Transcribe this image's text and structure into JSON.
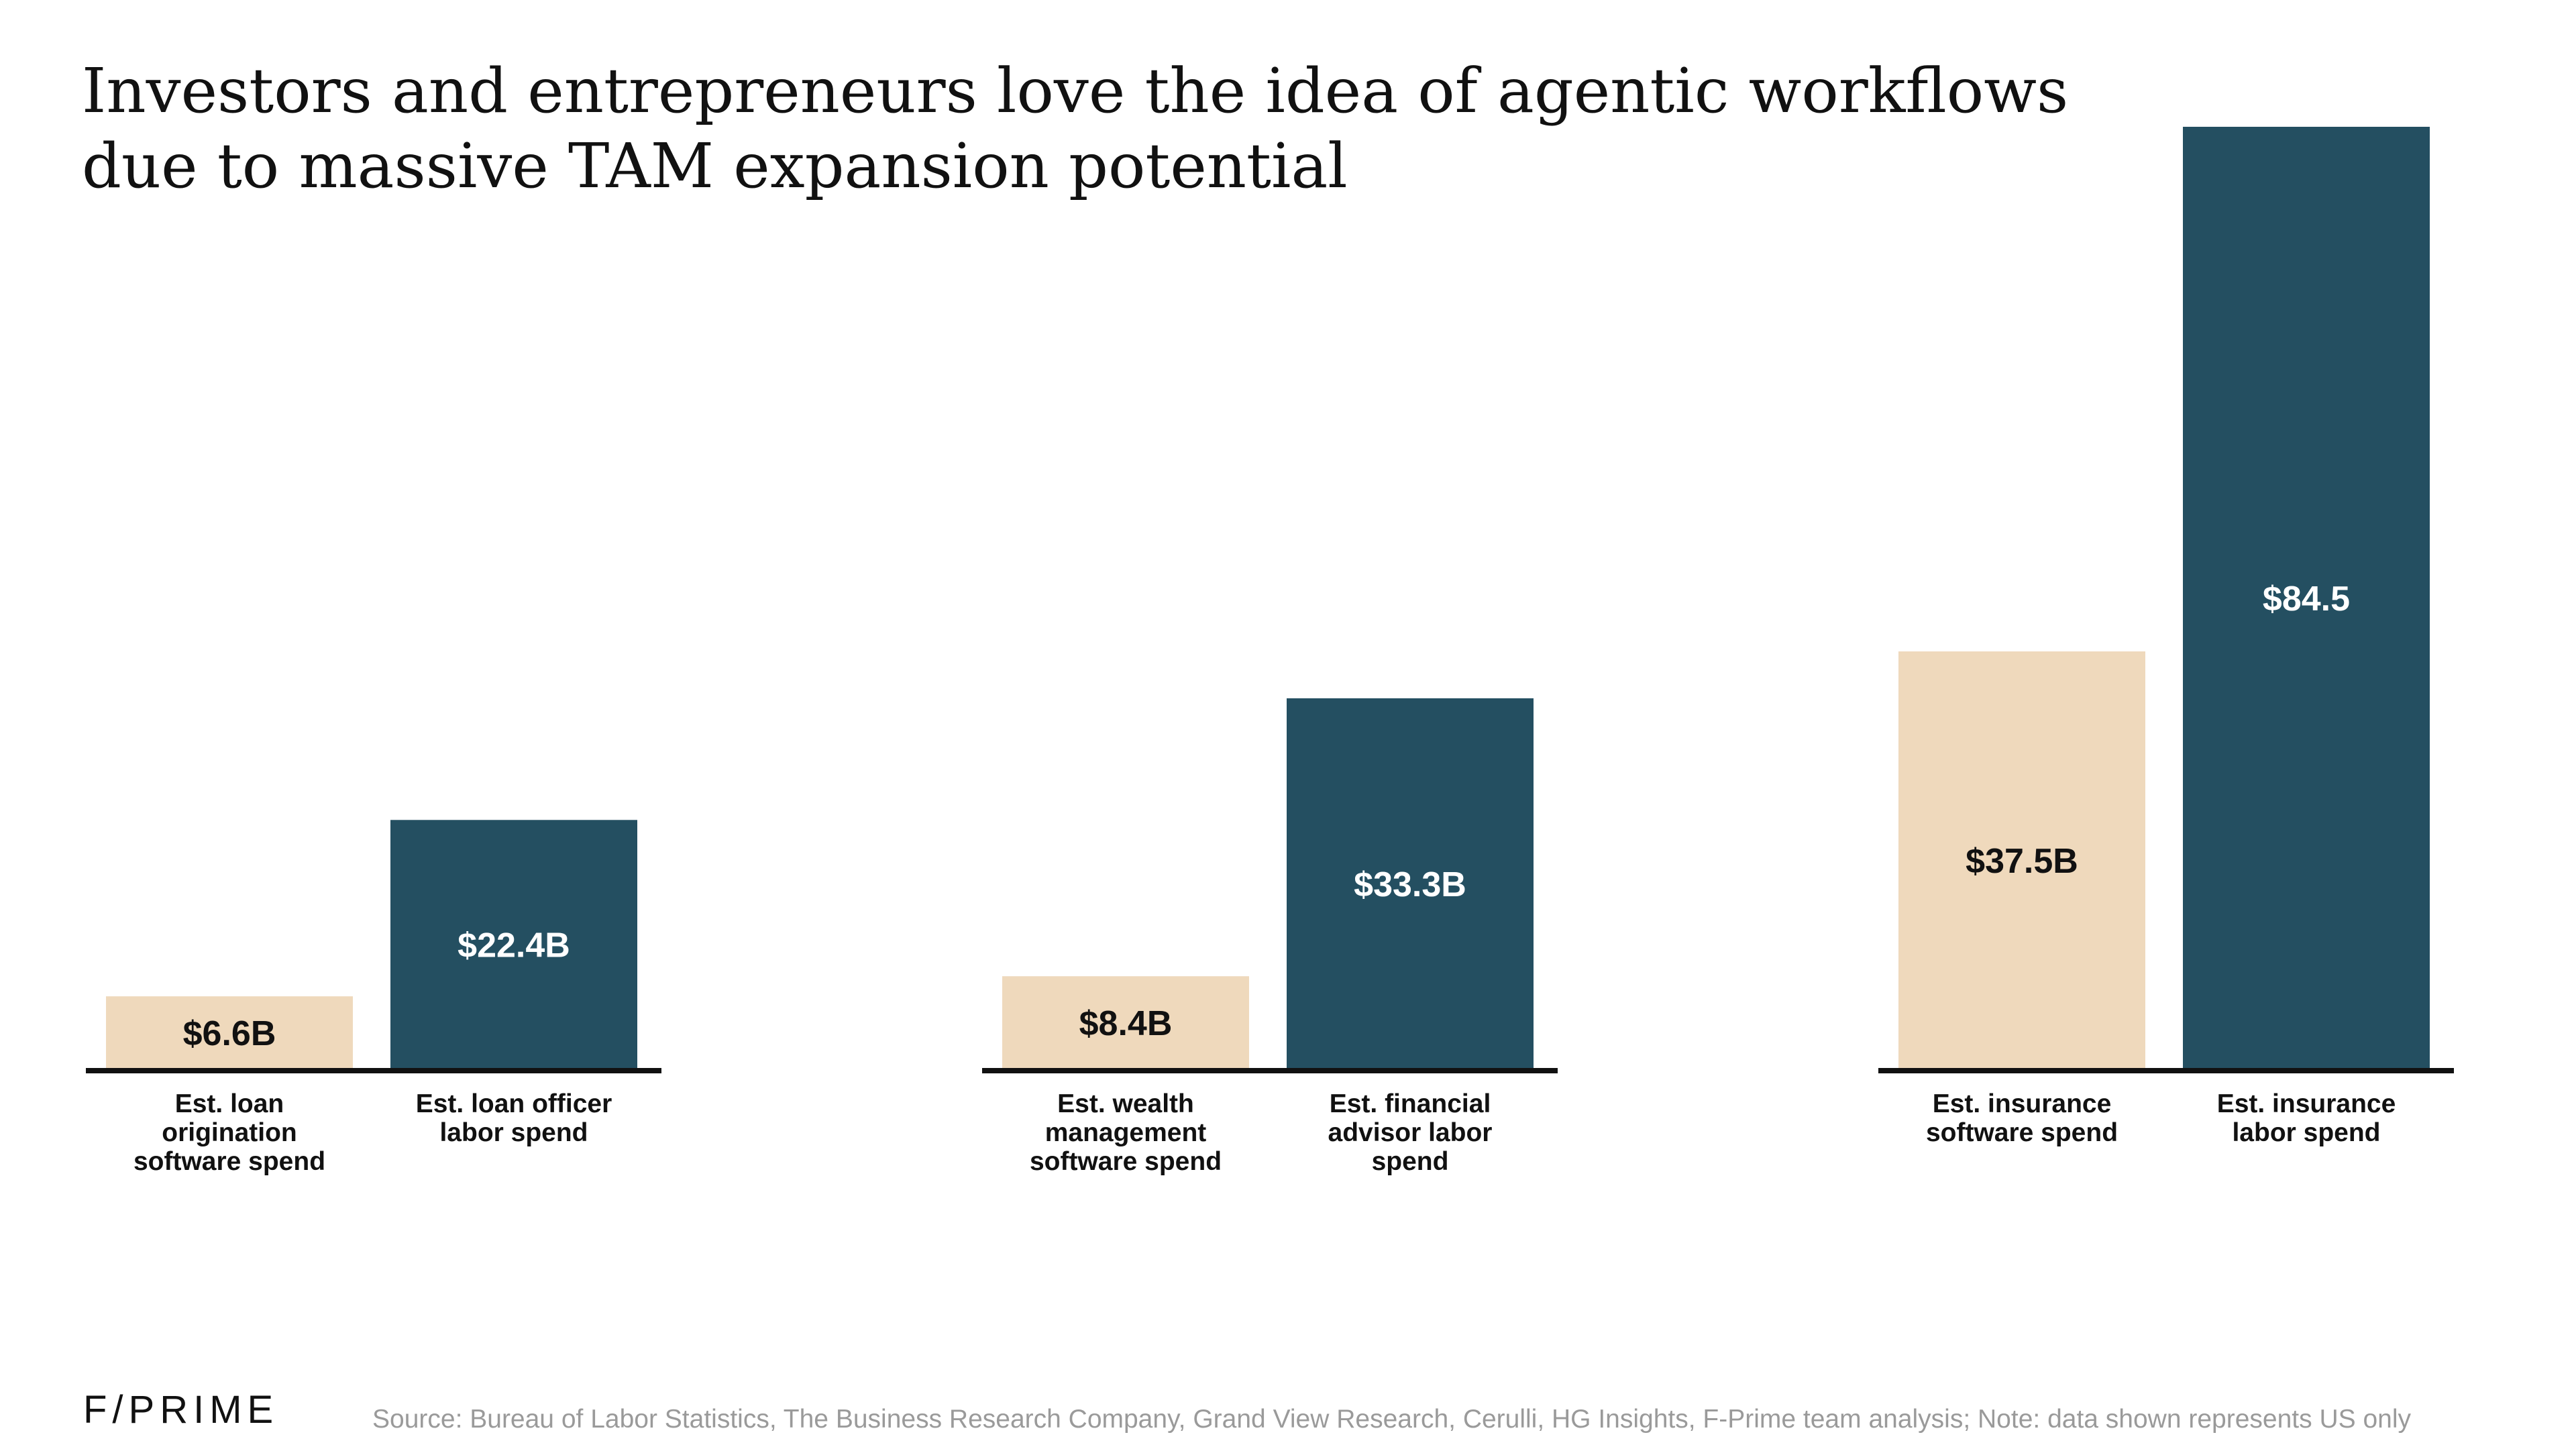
{
  "title_lines": [
    "Investors and entrepreneurs love the idea of agentic workflows",
    "due to massive TAM expansion potential"
  ],
  "colors": {
    "software": "#EFD9BC",
    "labor": "#244F61",
    "software_label": "#111111",
    "labor_label": "#ffffff",
    "baseline": "#111111"
  },
  "chart_data": {
    "type": "bar",
    "unit": "USD billions",
    "groups": [
      {
        "bars": [
          {
            "label_lines": [
              "Est. loan",
              "origination",
              "software spend"
            ],
            "value": 6.6,
            "display": "$6.6B",
            "kind": "software"
          },
          {
            "label_lines": [
              "Est. loan officer",
              "labor spend"
            ],
            "value": 22.4,
            "display": "$22.4B",
            "kind": "labor"
          }
        ]
      },
      {
        "bars": [
          {
            "label_lines": [
              "Est. wealth",
              "management",
              "software spend"
            ],
            "value": 8.4,
            "display": "$8.4B",
            "kind": "software"
          },
          {
            "label_lines": [
              "Est. financial",
              "advisor labor",
              "spend"
            ],
            "value": 33.3,
            "display": "$33.3B",
            "kind": "labor"
          }
        ]
      },
      {
        "bars": [
          {
            "label_lines": [
              "Est. insurance",
              "software spend"
            ],
            "value": 37.5,
            "display": "$37.5B",
            "kind": "software"
          },
          {
            "label_lines": [
              "Est. insurance",
              "labor spend"
            ],
            "value": 84.5,
            "display": "$84.5",
            "kind": "labor"
          }
        ]
      }
    ]
  },
  "footer": {
    "logo": "F/PRIME",
    "source": "Source: Bureau of Labor Statistics, The Business Research Company, Grand View Research, Cerulli, HG Insights, F-Prime team analysis; Note: data shown represents US only"
  }
}
